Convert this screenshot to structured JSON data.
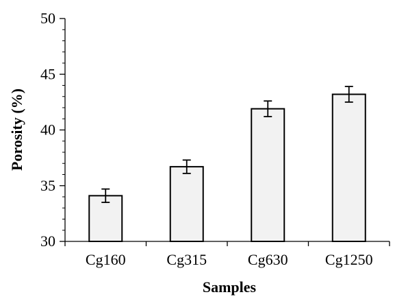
{
  "chart_data": {
    "type": "bar",
    "title": "",
    "xlabel": "Samples",
    "ylabel": "Porosity (%)",
    "categories": [
      "Cg160",
      "Cg315",
      "Cg630",
      "Cg1250"
    ],
    "values": [
      34.1,
      36.7,
      41.9,
      43.2
    ],
    "errors": [
      0.6,
      0.6,
      0.7,
      0.7
    ],
    "ylim": [
      30,
      50
    ],
    "yticks": [
      30,
      35,
      40,
      45,
      50
    ],
    "grid": false,
    "bar_color": "#f2f2f2",
    "edge_color": "#000000"
  }
}
